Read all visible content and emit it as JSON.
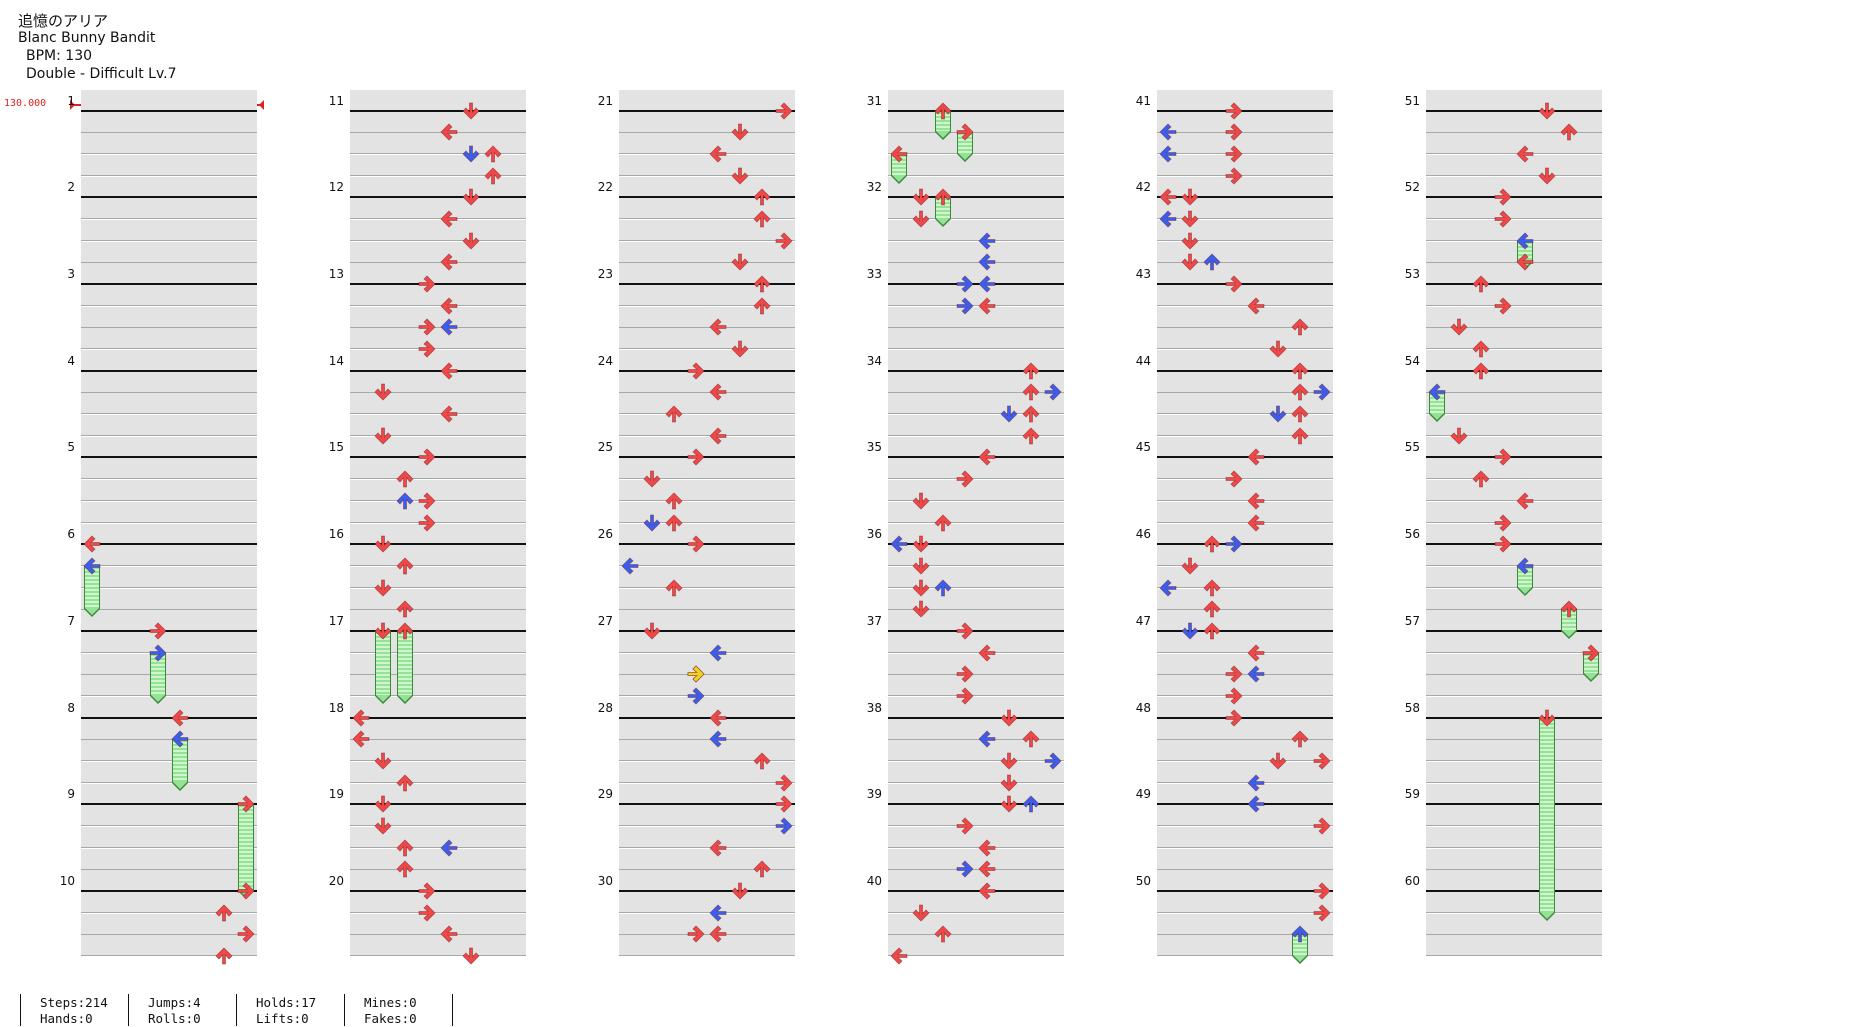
{
  "song": {
    "title": "追憶のアリア",
    "artist": "Blanc Bunny Bandit",
    "bpm_line": "BPM: 130",
    "difficulty_line": "Double - Difficult  Lv.7"
  },
  "bpm_marker": {
    "label": "130.000"
  },
  "colors": {
    "red": "#f04848",
    "blue": "#3a5ef0",
    "yellow": "#f2d420",
    "hold_green": "#94e294"
  },
  "measures": [
    "1",
    "2",
    "3",
    "4",
    "5",
    "6",
    "7",
    "8",
    "9",
    "10",
    "11",
    "12",
    "13",
    "14",
    "15",
    "16",
    "17",
    "18",
    "19",
    "20",
    "21",
    "22",
    "23",
    "24",
    "25",
    "26",
    "27",
    "28",
    "29",
    "30",
    "31",
    "32",
    "33",
    "34",
    "35",
    "36",
    "37",
    "38",
    "39",
    "40",
    "41",
    "42",
    "43",
    "44",
    "45",
    "46",
    "47",
    "48",
    "49",
    "50",
    "51",
    "52",
    "53",
    "54",
    "55",
    "56",
    "57",
    "58",
    "59",
    "60"
  ],
  "chart_data": {
    "type": "note-chart",
    "mode": "Double",
    "lanes": 8,
    "rows_per_measure": 4,
    "measures_per_column": 10,
    "notes": [
      {
        "m": 6,
        "r": 0,
        "l": 0,
        "c": "red"
      },
      {
        "m": 6,
        "r": 1,
        "l": 0,
        "c": "blue",
        "hold": 2
      },
      {
        "m": 7,
        "r": 0,
        "l": 3,
        "c": "red"
      },
      {
        "m": 7,
        "r": 1,
        "l": 3,
        "c": "blue",
        "hold": 2
      },
      {
        "m": 8,
        "r": 0,
        "l": 4,
        "c": "red"
      },
      {
        "m": 8,
        "r": 1,
        "l": 4,
        "c": "blue",
        "hold": 2
      },
      {
        "m": 9,
        "r": 0,
        "l": 7,
        "c": "red",
        "hold": 4
      },
      {
        "m": 10,
        "r": 0,
        "l": 7,
        "c": "red"
      },
      {
        "m": 10,
        "r": 1,
        "l": 6,
        "c": "red"
      },
      {
        "m": 10,
        "r": 2,
        "l": 7,
        "c": "red"
      },
      {
        "m": 10,
        "r": 3,
        "l": 6,
        "c": "red"
      },
      {
        "m": 11,
        "r": 0,
        "l": 5,
        "c": "red"
      },
      {
        "m": 11,
        "r": 1,
        "l": 4,
        "c": "red"
      },
      {
        "m": 11,
        "r": 2,
        "l": 5,
        "c": "blue"
      },
      {
        "m": 11,
        "r": 2,
        "l": 6,
        "c": "red"
      },
      {
        "m": 11,
        "r": 3,
        "l": 6,
        "c": "red"
      },
      {
        "m": 12,
        "r": 0,
        "l": 5,
        "c": "red"
      },
      {
        "m": 12,
        "r": 1,
        "l": 4,
        "c": "red"
      },
      {
        "m": 12,
        "r": 2,
        "l": 5,
        "c": "red"
      },
      {
        "m": 12,
        "r": 3,
        "l": 4,
        "c": "red"
      },
      {
        "m": 13,
        "r": 0,
        "l": 3,
        "c": "red"
      },
      {
        "m": 13,
        "r": 1,
        "l": 4,
        "c": "red"
      },
      {
        "m": 13,
        "r": 2,
        "l": 3,
        "c": "red"
      },
      {
        "m": 13,
        "r": 2,
        "l": 4,
        "c": "blue"
      },
      {
        "m": 13,
        "r": 3,
        "l": 3,
        "c": "red"
      },
      {
        "m": 14,
        "r": 0,
        "l": 4,
        "c": "red"
      },
      {
        "m": 14,
        "r": 1,
        "l": 1,
        "c": "red"
      },
      {
        "m": 14,
        "r": 2,
        "l": 4,
        "c": "red"
      },
      {
        "m": 14,
        "r": 3,
        "l": 1,
        "c": "red"
      },
      {
        "m": 15,
        "r": 0,
        "l": 3,
        "c": "red"
      },
      {
        "m": 15,
        "r": 1,
        "l": 2,
        "c": "red"
      },
      {
        "m": 15,
        "r": 2,
        "l": 3,
        "c": "red"
      },
      {
        "m": 15,
        "r": 2,
        "l": 2,
        "c": "blue"
      },
      {
        "m": 15,
        "r": 3,
        "l": 3,
        "c": "red"
      },
      {
        "m": 16,
        "r": 0,
        "l": 1,
        "c": "red"
      },
      {
        "m": 16,
        "r": 1,
        "l": 2,
        "c": "red"
      },
      {
        "m": 16,
        "r": 2,
        "l": 1,
        "c": "red"
      },
      {
        "m": 16,
        "r": 3,
        "l": 2,
        "c": "red"
      },
      {
        "m": 17,
        "r": 0,
        "l": 1,
        "c": "red",
        "hold": 3
      },
      {
        "m": 17,
        "r": 0,
        "l": 2,
        "c": "red",
        "hold": 3
      },
      {
        "m": 18,
        "r": 0,
        "l": 0,
        "c": "red"
      },
      {
        "m": 18,
        "r": 1,
        "l": 0,
        "c": "red"
      },
      {
        "m": 18,
        "r": 2,
        "l": 1,
        "c": "red"
      },
      {
        "m": 18,
        "r": 3,
        "l": 2,
        "c": "red"
      },
      {
        "m": 19,
        "r": 0,
        "l": 1,
        "c": "red"
      },
      {
        "m": 19,
        "r": 1,
        "l": 1,
        "c": "red"
      },
      {
        "m": 19,
        "r": 2,
        "l": 2,
        "c": "red"
      },
      {
        "m": 19,
        "r": 2,
        "l": 4,
        "c": "blue"
      },
      {
        "m": 19,
        "r": 3,
        "l": 2,
        "c": "red"
      },
      {
        "m": 20,
        "r": 0,
        "l": 3,
        "c": "red"
      },
      {
        "m": 20,
        "r": 1,
        "l": 3,
        "c": "red"
      },
      {
        "m": 20,
        "r": 2,
        "l": 4,
        "c": "red"
      },
      {
        "m": 20,
        "r": 3,
        "l": 5,
        "c": "red"
      },
      {
        "m": 21,
        "r": 0,
        "l": 7,
        "c": "red"
      },
      {
        "m": 21,
        "r": 1,
        "l": 5,
        "c": "red"
      },
      {
        "m": 21,
        "r": 2,
        "l": 4,
        "c": "red"
      },
      {
        "m": 21,
        "r": 3,
        "l": 5,
        "c": "red"
      },
      {
        "m": 22,
        "r": 0,
        "l": 6,
        "c": "red"
      },
      {
        "m": 22,
        "r": 1,
        "l": 6,
        "c": "red"
      },
      {
        "m": 22,
        "r": 2,
        "l": 7,
        "c": "red"
      },
      {
        "m": 22,
        "r": 3,
        "l": 5,
        "c": "red"
      },
      {
        "m": 23,
        "r": 0,
        "l": 6,
        "c": "red"
      },
      {
        "m": 23,
        "r": 1,
        "l": 6,
        "c": "red"
      },
      {
        "m": 23,
        "r": 2,
        "l": 4,
        "c": "red"
      },
      {
        "m": 23,
        "r": 3,
        "l": 5,
        "c": "red"
      },
      {
        "m": 24,
        "r": 0,
        "l": 3,
        "c": "red"
      },
      {
        "m": 24,
        "r": 1,
        "l": 4,
        "c": "red"
      },
      {
        "m": 24,
        "r": 2,
        "l": 2,
        "c": "red"
      },
      {
        "m": 24,
        "r": 3,
        "l": 4,
        "c": "red"
      },
      {
        "m": 25,
        "r": 0,
        "l": 3,
        "c": "red"
      },
      {
        "m": 25,
        "r": 1,
        "l": 1,
        "c": "red"
      },
      {
        "m": 25,
        "r": 2,
        "l": 2,
        "c": "red"
      },
      {
        "m": 25,
        "r": 3,
        "l": 1,
        "c": "blue"
      },
      {
        "m": 25,
        "r": 3,
        "l": 2,
        "c": "red"
      },
      {
        "m": 26,
        "r": 0,
        "l": 3,
        "c": "red"
      },
      {
        "m": 26,
        "r": 1,
        "l": 0,
        "c": "blue"
      },
      {
        "m": 26,
        "r": 2,
        "l": 2,
        "c": "red"
      },
      {
        "m": 27,
        "r": 0,
        "l": 1,
        "c": "red"
      },
      {
        "m": 27,
        "r": 1,
        "l": 4,
        "c": "blue"
      },
      {
        "m": 27,
        "r": 2,
        "l": 3,
        "c": "red"
      },
      {
        "m": 27,
        "r": 2,
        "l": 3,
        "c": "yellow"
      },
      {
        "m": 27,
        "r": 3,
        "l": 3,
        "c": "blue"
      },
      {
        "m": 28,
        "r": 0,
        "l": 4,
        "c": "red"
      },
      {
        "m": 28,
        "r": 1,
        "l": 4,
        "c": "blue"
      },
      {
        "m": 28,
        "r": 2,
        "l": 6,
        "c": "red"
      },
      {
        "m": 28,
        "r": 3,
        "l": 7,
        "c": "red"
      },
      {
        "m": 29,
        "r": 0,
        "l": 7,
        "c": "red"
      },
      {
        "m": 29,
        "r": 1,
        "l": 7,
        "c": "blue"
      },
      {
        "m": 29,
        "r": 2,
        "l": 4,
        "c": "red"
      },
      {
        "m": 29,
        "r": 3,
        "l": 6,
        "c": "red"
      },
      {
        "m": 30,
        "r": 0,
        "l": 5,
        "c": "red"
      },
      {
        "m": 30,
        "r": 1,
        "l": 4,
        "c": "blue"
      },
      {
        "m": 30,
        "r": 2,
        "l": 3,
        "c": "red"
      },
      {
        "m": 30,
        "r": 2,
        "l": 4,
        "c": "red"
      },
      {
        "m": 31,
        "r": 0,
        "l": 2,
        "c": "red",
        "hold": 1
      },
      {
        "m": 31,
        "r": 1,
        "l": 3,
        "c": "red",
        "hold": 1
      },
      {
        "m": 31,
        "r": 2,
        "l": 0,
        "c": "red",
        "hold": 1
      },
      {
        "m": 32,
        "r": 0,
        "l": 1,
        "c": "red"
      },
      {
        "m": 32,
        "r": 0,
        "l": 2,
        "c": "red",
        "hold": 1
      },
      {
        "m": 32,
        "r": 1,
        "l": 1,
        "c": "red"
      },
      {
        "m": 32,
        "r": 2,
        "l": 4,
        "c": "blue"
      },
      {
        "m": 32,
        "r": 3,
        "l": 4,
        "c": "blue"
      },
      {
        "m": 33,
        "r": 0,
        "l": 3,
        "c": "blue"
      },
      {
        "m": 33,
        "r": 0,
        "l": 4,
        "c": "blue"
      },
      {
        "m": 33,
        "r": 1,
        "l": 3,
        "c": "blue"
      },
      {
        "m": 33,
        "r": 1,
        "l": 4,
        "c": "red"
      },
      {
        "m": 34,
        "r": 0,
        "l": 6,
        "c": "red"
      },
      {
        "m": 34,
        "r": 1,
        "l": 6,
        "c": "red"
      },
      {
        "m": 34,
        "r": 1,
        "l": 7,
        "c": "blue"
      },
      {
        "m": 34,
        "r": 2,
        "l": 6,
        "c": "red"
      },
      {
        "m": 34,
        "r": 2,
        "l": 5,
        "c": "blue"
      },
      {
        "m": 34,
        "r": 3,
        "l": 6,
        "c": "red"
      },
      {
        "m": 35,
        "r": 0,
        "l": 4,
        "c": "red"
      },
      {
        "m": 35,
        "r": 1,
        "l": 3,
        "c": "red"
      },
      {
        "m": 35,
        "r": 2,
        "l": 1,
        "c": "red"
      },
      {
        "m": 35,
        "r": 3,
        "l": 2,
        "c": "red"
      },
      {
        "m": 36,
        "r": 0,
        "l": 0,
        "c": "blue"
      },
      {
        "m": 36,
        "r": 0,
        "l": 1,
        "c": "red"
      },
      {
        "m": 36,
        "r": 1,
        "l": 1,
        "c": "red"
      },
      {
        "m": 36,
        "r": 2,
        "l": 1,
        "c": "red"
      },
      {
        "m": 36,
        "r": 2,
        "l": 2,
        "c": "blue"
      },
      {
        "m": 36,
        "r": 3,
        "l": 1,
        "c": "red"
      },
      {
        "m": 37,
        "r": 0,
        "l": 3,
        "c": "red"
      },
      {
        "m": 37,
        "r": 1,
        "l": 4,
        "c": "red"
      },
      {
        "m": 37,
        "r": 2,
        "l": 3,
        "c": "red"
      },
      {
        "m": 37,
        "r": 3,
        "l": 3,
        "c": "red"
      },
      {
        "m": 38,
        "r": 0,
        "l": 5,
        "c": "red"
      },
      {
        "m": 38,
        "r": 1,
        "l": 4,
        "c": "blue"
      },
      {
        "m": 38,
        "r": 1,
        "l": 6,
        "c": "red"
      },
      {
        "m": 38,
        "r": 2,
        "l": 5,
        "c": "red"
      },
      {
        "m": 38,
        "r": 2,
        "l": 7,
        "c": "blue"
      },
      {
        "m": 38,
        "r": 3,
        "l": 5,
        "c": "red"
      },
      {
        "m": 39,
        "r": 0,
        "l": 5,
        "c": "red"
      },
      {
        "m": 39,
        "r": 0,
        "l": 6,
        "c": "blue"
      },
      {
        "m": 39,
        "r": 1,
        "l": 3,
        "c": "red"
      },
      {
        "m": 39,
        "r": 2,
        "l": 4,
        "c": "red"
      },
      {
        "m": 39,
        "r": 3,
        "l": 3,
        "c": "blue"
      },
      {
        "m": 39,
        "r": 3,
        "l": 4,
        "c": "red"
      },
      {
        "m": 40,
        "r": 0,
        "l": 4,
        "c": "red"
      },
      {
        "m": 40,
        "r": 1,
        "l": 1,
        "c": "red"
      },
      {
        "m": 40,
        "r": 2,
        "l": 2,
        "c": "red"
      },
      {
        "m": 40,
        "r": 3,
        "l": 0,
        "c": "red"
      },
      {
        "m": 41,
        "r": 0,
        "l": 3,
        "c": "red"
      },
      {
        "m": 41,
        "r": 1,
        "l": 0,
        "c": "blue"
      },
      {
        "m": 41,
        "r": 1,
        "l": 3,
        "c": "red"
      },
      {
        "m": 41,
        "r": 2,
        "l": 0,
        "c": "blue"
      },
      {
        "m": 41,
        "r": 2,
        "l": 3,
        "c": "red"
      },
      {
        "m": 41,
        "r": 3,
        "l": 3,
        "c": "red"
      },
      {
        "m": 42,
        "r": 0,
        "l": 0,
        "c": "red"
      },
      {
        "m": 42,
        "r": 0,
        "l": 1,
        "c": "red"
      },
      {
        "m": 42,
        "r": 1,
        "l": 0,
        "c": "blue"
      },
      {
        "m": 42,
        "r": 1,
        "l": 1,
        "c": "red"
      },
      {
        "m": 42,
        "r": 2,
        "l": 1,
        "c": "red"
      },
      {
        "m": 42,
        "r": 3,
        "l": 1,
        "c": "red"
      },
      {
        "m": 42,
        "r": 3,
        "l": 2,
        "c": "blue"
      },
      {
        "m": 43,
        "r": 0,
        "l": 3,
        "c": "red"
      },
      {
        "m": 43,
        "r": 1,
        "l": 4,
        "c": "red"
      },
      {
        "m": 43,
        "r": 2,
        "l": 6,
        "c": "red"
      },
      {
        "m": 43,
        "r": 3,
        "l": 5,
        "c": "red"
      },
      {
        "m": 44,
        "r": 0,
        "l": 6,
        "c": "red"
      },
      {
        "m": 44,
        "r": 1,
        "l": 6,
        "c": "red"
      },
      {
        "m": 44,
        "r": 1,
        "l": 7,
        "c": "blue"
      },
      {
        "m": 44,
        "r": 2,
        "l": 6,
        "c": "red"
      },
      {
        "m": 44,
        "r": 2,
        "l": 5,
        "c": "blue"
      },
      {
        "m": 44,
        "r": 3,
        "l": 6,
        "c": "red"
      },
      {
        "m": 45,
        "r": 0,
        "l": 4,
        "c": "red"
      },
      {
        "m": 45,
        "r": 1,
        "l": 3,
        "c": "red"
      },
      {
        "m": 45,
        "r": 2,
        "l": 4,
        "c": "red"
      },
      {
        "m": 45,
        "r": 3,
        "l": 4,
        "c": "red"
      },
      {
        "m": 46,
        "r": 0,
        "l": 2,
        "c": "red"
      },
      {
        "m": 46,
        "r": 0,
        "l": 3,
        "c": "blue"
      },
      {
        "m": 46,
        "r": 1,
        "l": 1,
        "c": "red"
      },
      {
        "m": 46,
        "r": 2,
        "l": 0,
        "c": "blue"
      },
      {
        "m": 46,
        "r": 2,
        "l": 2,
        "c": "red"
      },
      {
        "m": 46,
        "r": 3,
        "l": 2,
        "c": "red"
      },
      {
        "m": 47,
        "r": 0,
        "l": 2,
        "c": "red"
      },
      {
        "m": 47,
        "r": 0,
        "l": 1,
        "c": "blue"
      },
      {
        "m": 47,
        "r": 1,
        "l": 4,
        "c": "red"
      },
      {
        "m": 47,
        "r": 2,
        "l": 3,
        "c": "red"
      },
      {
        "m": 47,
        "r": 2,
        "l": 4,
        "c": "blue"
      },
      {
        "m": 47,
        "r": 3,
        "l": 3,
        "c": "red"
      },
      {
        "m": 48,
        "r": 0,
        "l": 3,
        "c": "red"
      },
      {
        "m": 48,
        "r": 1,
        "l": 6,
        "c": "red"
      },
      {
        "m": 48,
        "r": 2,
        "l": 5,
        "c": "red"
      },
      {
        "m": 48,
        "r": 2,
        "l": 7,
        "c": "red"
      },
      {
        "m": 48,
        "r": 3,
        "l": 4,
        "c": "blue"
      },
      {
        "m": 49,
        "r": 0,
        "l": 4,
        "c": "blue"
      },
      {
        "m": 49,
        "r": 1,
        "l": 7,
        "c": "red"
      },
      {
        "m": 50,
        "r": 0,
        "l": 7,
        "c": "red"
      },
      {
        "m": 50,
        "r": 1,
        "l": 7,
        "c": "red"
      },
      {
        "m": 50,
        "r": 2,
        "l": 6,
        "c": "blue",
        "hold": 1
      },
      {
        "m": 51,
        "r": 0,
        "l": 5,
        "c": "red"
      },
      {
        "m": 51,
        "r": 1,
        "l": 6,
        "c": "red"
      },
      {
        "m": 51,
        "r": 2,
        "l": 4,
        "c": "red"
      },
      {
        "m": 51,
        "r": 3,
        "l": 5,
        "c": "red"
      },
      {
        "m": 52,
        "r": 0,
        "l": 3,
        "c": "red"
      },
      {
        "m": 52,
        "r": 1,
        "l": 3,
        "c": "red"
      },
      {
        "m": 52,
        "r": 2,
        "l": 4,
        "c": "blue",
        "hold": 1
      },
      {
        "m": 52,
        "r": 3,
        "l": 4,
        "c": "red"
      },
      {
        "m": 53,
        "r": 0,
        "l": 2,
        "c": "red"
      },
      {
        "m": 53,
        "r": 1,
        "l": 3,
        "c": "red"
      },
      {
        "m": 53,
        "r": 2,
        "l": 1,
        "c": "red"
      },
      {
        "m": 53,
        "r": 3,
        "l": 2,
        "c": "red"
      },
      {
        "m": 54,
        "r": 0,
        "l": 2,
        "c": "red"
      },
      {
        "m": 54,
        "r": 1,
        "l": 0,
        "c": "blue",
        "hold": 1
      },
      {
        "m": 54,
        "r": 3,
        "l": 1,
        "c": "red"
      },
      {
        "m": 55,
        "r": 0,
        "l": 3,
        "c": "red"
      },
      {
        "m": 55,
        "r": 1,
        "l": 2,
        "c": "red"
      },
      {
        "m": 55,
        "r": 2,
        "l": 4,
        "c": "red"
      },
      {
        "m": 55,
        "r": 3,
        "l": 3,
        "c": "red"
      },
      {
        "m": 56,
        "r": 0,
        "l": 3,
        "c": "red"
      },
      {
        "m": 56,
        "r": 1,
        "l": 4,
        "c": "blue",
        "hold": 1
      },
      {
        "m": 56,
        "r": 3,
        "l": 6,
        "c": "red",
        "hold": 1
      },
      {
        "m": 57,
        "r": 1,
        "l": 7,
        "c": "red",
        "hold": 1
      },
      {
        "m": 58,
        "r": 0,
        "l": 5,
        "c": "red",
        "hold": 9
      }
    ]
  },
  "stats": {
    "steps": "Steps:214",
    "hands": "Hands:0",
    "jumps": "Jumps:4",
    "rolls": "Rolls:0",
    "holds": "Holds:17",
    "lifts": "Lifts:0",
    "mines": "Mines:0",
    "fakes": "Fakes:0"
  }
}
